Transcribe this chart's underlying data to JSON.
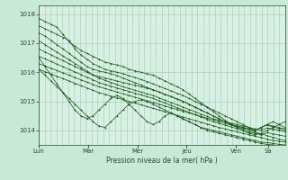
{
  "xlabel": "Pression niveau de la mer( hPa )",
  "background_color": "#c8e8d8",
  "plot_bg_color": "#d8f0e4",
  "grid_color": "#a0c8b0",
  "line_color": "#1a5c1a",
  "ylim": [
    1013.5,
    1018.3
  ],
  "yticks": [
    1014,
    1015,
    1016,
    1017,
    1018
  ],
  "xlim": [
    0,
    1
  ],
  "day_positions": [
    0.0,
    0.2,
    0.4,
    0.6,
    0.8,
    0.93
  ],
  "day_labels": [
    "Lun",
    "Mar",
    "Mer",
    "Jeu",
    "Ven",
    "Sa"
  ],
  "series": [
    [
      1017.85,
      1017.75,
      1017.65,
      1017.55,
      1017.3,
      1017.05,
      1016.9,
      1016.75,
      1016.65,
      1016.55,
      1016.45,
      1016.35,
      1016.3,
      1016.25,
      1016.2,
      1016.1,
      1016.05,
      1016.0,
      1015.95,
      1015.9,
      1015.8,
      1015.7,
      1015.6,
      1015.5,
      1015.4,
      1015.25,
      1015.1,
      1014.95,
      1014.8,
      1014.65,
      1014.5,
      1014.35,
      1014.2,
      1014.1,
      1014.0,
      1013.9,
      1013.85,
      1013.9,
      1014.0,
      1014.1,
      1014.2,
      1014.3
    ],
    [
      1017.6,
      1017.5,
      1017.4,
      1017.3,
      1017.2,
      1017.1,
      1016.8,
      1016.6,
      1016.45,
      1016.3,
      1016.2,
      1016.1,
      1016.05,
      1016.0,
      1015.95,
      1015.88,
      1015.82,
      1015.75,
      1015.68,
      1015.6,
      1015.52,
      1015.44,
      1015.36,
      1015.28,
      1015.2,
      1015.1,
      1015.0,
      1014.9,
      1014.8,
      1014.7,
      1014.6,
      1014.5,
      1014.4,
      1014.3,
      1014.2,
      1014.1,
      1014.0,
      1014.1,
      1014.2,
      1014.3,
      1014.2,
      1014.1
    ],
    [
      1017.35,
      1017.25,
      1017.1,
      1016.95,
      1016.8,
      1016.65,
      1016.5,
      1016.35,
      1016.2,
      1016.1,
      1016.05,
      1016.0,
      1015.95,
      1015.88,
      1015.8,
      1015.72,
      1015.64,
      1015.56,
      1015.48,
      1015.4,
      1015.32,
      1015.24,
      1015.16,
      1015.08,
      1015.0,
      1014.9,
      1014.8,
      1014.7,
      1014.6,
      1014.5,
      1014.4,
      1014.3,
      1014.2,
      1014.15,
      1014.1,
      1014.05,
      1014.0,
      1014.1,
      1014.2,
      1014.15,
      1014.1,
      1014.05
    ],
    [
      1017.08,
      1016.95,
      1016.82,
      1016.69,
      1016.56,
      1016.43,
      1016.3,
      1016.17,
      1016.04,
      1015.91,
      1015.85,
      1015.8,
      1015.75,
      1015.7,
      1015.65,
      1015.6,
      1015.55,
      1015.5,
      1015.45,
      1015.4,
      1015.32,
      1015.24,
      1015.16,
      1015.08,
      1015.0,
      1014.9,
      1014.8,
      1014.7,
      1014.6,
      1014.5,
      1014.4,
      1014.3,
      1014.2,
      1014.15,
      1014.1,
      1014.05,
      1014.0,
      1014.1,
      1014.18,
      1014.12,
      1014.06,
      1014.0
    ],
    [
      1016.8,
      1016.7,
      1016.6,
      1016.5,
      1016.4,
      1016.3,
      1016.2,
      1016.1,
      1016.0,
      1015.9,
      1015.8,
      1015.72,
      1015.65,
      1015.58,
      1015.5,
      1015.44,
      1015.38,
      1015.32,
      1015.26,
      1015.2,
      1015.12,
      1015.04,
      1014.96,
      1014.88,
      1014.8,
      1014.72,
      1014.64,
      1014.56,
      1014.48,
      1014.4,
      1014.35,
      1014.3,
      1014.25,
      1014.2,
      1014.15,
      1014.1,
      1014.05,
      1014.0,
      1014.08,
      1014.04,
      1014.0,
      1013.95
    ],
    [
      1016.55,
      1016.46,
      1016.37,
      1016.28,
      1016.19,
      1016.1,
      1016.01,
      1015.92,
      1015.83,
      1015.74,
      1015.65,
      1015.58,
      1015.52,
      1015.46,
      1015.4,
      1015.34,
      1015.28,
      1015.22,
      1015.16,
      1015.1,
      1015.02,
      1014.94,
      1014.86,
      1014.78,
      1014.7,
      1014.62,
      1014.54,
      1014.46,
      1014.38,
      1014.3,
      1014.24,
      1014.18,
      1014.12,
      1014.06,
      1014.0,
      1013.94,
      1013.9,
      1013.85,
      1013.92,
      1013.88,
      1013.84,
      1013.8
    ],
    [
      1016.3,
      1016.22,
      1016.14,
      1016.06,
      1015.98,
      1015.9,
      1015.82,
      1015.74,
      1015.66,
      1015.58,
      1015.5,
      1015.44,
      1015.38,
      1015.32,
      1015.26,
      1015.2,
      1015.14,
      1015.08,
      1015.02,
      1014.96,
      1014.9,
      1014.84,
      1014.78,
      1014.72,
      1014.66,
      1014.6,
      1014.54,
      1014.48,
      1014.42,
      1014.36,
      1014.3,
      1014.24,
      1014.18,
      1014.12,
      1014.06,
      1014.0,
      1013.94,
      1013.88,
      1013.82,
      1013.76,
      1013.7,
      1013.65
    ],
    [
      1016.1,
      1016.02,
      1015.94,
      1015.86,
      1015.78,
      1015.7,
      1015.62,
      1015.54,
      1015.46,
      1015.38,
      1015.3,
      1015.24,
      1015.18,
      1015.12,
      1015.06,
      1015.0,
      1014.94,
      1014.88,
      1014.82,
      1014.76,
      1014.7,
      1014.64,
      1014.58,
      1014.52,
      1014.46,
      1014.4,
      1014.34,
      1014.28,
      1014.22,
      1014.16,
      1014.1,
      1014.05,
      1014.0,
      1013.95,
      1013.9,
      1013.85,
      1013.8,
      1013.75,
      1013.7,
      1013.65,
      1013.62,
      1013.6
    ],
    [
      1016.1,
      1015.9,
      1015.7,
      1015.5,
      1015.3,
      1015.1,
      1014.9,
      1014.7,
      1014.5,
      1014.3,
      1014.15,
      1014.1,
      1014.3,
      1014.5,
      1014.7,
      1014.9,
      1015.0,
      1015.05,
      1015.0,
      1014.9,
      1014.8,
      1014.7,
      1014.6,
      1014.5,
      1014.4,
      1014.3,
      1014.2,
      1014.1,
      1014.05,
      1014.0,
      1013.95,
      1013.9,
      1013.85,
      1013.8,
      1013.75,
      1013.7,
      1013.65,
      1013.6,
      1013.58,
      1013.55,
      1013.52,
      1013.5
    ],
    [
      1016.5,
      1016.2,
      1015.9,
      1015.6,
      1015.3,
      1015.0,
      1014.7,
      1014.5,
      1014.4,
      1014.5,
      1014.7,
      1014.9,
      1015.1,
      1015.2,
      1015.1,
      1014.9,
      1014.7,
      1014.5,
      1014.3,
      1014.2,
      1014.3,
      1014.5,
      1014.6,
      1014.5,
      1014.4,
      1014.3,
      1014.2,
      1014.1,
      1014.0,
      1013.95,
      1013.9,
      1013.85,
      1013.8,
      1013.75,
      1013.7,
      1013.65,
      1013.6,
      1013.55,
      1013.52,
      1013.5,
      1013.48,
      1013.45
    ]
  ]
}
